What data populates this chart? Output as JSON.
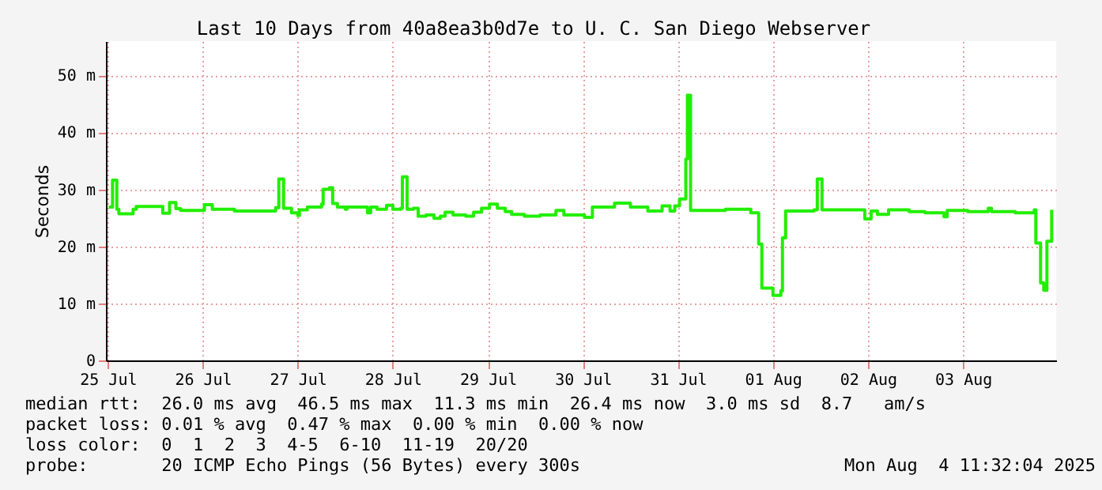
{
  "chart_data": {
    "type": "step",
    "title": "Last 10 Days from 40a8ea3b0d7e to U. C. San Diego Webserver",
    "ylabel": "Seconds",
    "xlim": [
      "2025-07-25T11:32",
      "2025-08-04T11:32"
    ],
    "xticks": [
      {
        "value": "2025-07-25T12:00",
        "label": "25 Jul"
      },
      {
        "value": "2025-07-26T12:00",
        "label": "26 Jul"
      },
      {
        "value": "2025-07-27T12:00",
        "label": "27 Jul"
      },
      {
        "value": "2025-07-28T12:00",
        "label": "28 Jul"
      },
      {
        "value": "2025-07-29T12:00",
        "label": "29 Jul"
      },
      {
        "value": "2025-07-30T12:00",
        "label": "30 Jul"
      },
      {
        "value": "2025-07-31T12:00",
        "label": "31 Jul"
      },
      {
        "value": "2025-08-01T12:00",
        "label": "01 Aug"
      },
      {
        "value": "2025-08-02T12:00",
        "label": "02 Aug"
      },
      {
        "value": "2025-08-03T12:00",
        "label": "03 Aug"
      }
    ],
    "ylim": [
      0,
      56
    ],
    "yticks": [
      0,
      {
        "value": 10,
        "label": "10 m"
      },
      {
        "value": 20,
        "label": "20 m"
      },
      {
        "value": 30,
        "label": "30 m"
      },
      {
        "value": 40,
        "label": "40 m"
      },
      {
        "value": 50,
        "label": "50 m"
      }
    ],
    "grid": true,
    "x": [
      "2025-07-25T12:15",
      "2025-07-25T13:12",
      "2025-07-25T14:17",
      "2025-07-25T14:48",
      "2025-07-25T18:24",
      "2025-07-25T19:12",
      "2025-07-26T01:12",
      "2025-07-26T01:53",
      "2025-07-26T03:36",
      "2025-07-26T05:12",
      "2025-07-26T06:24",
      "2025-07-26T12:24",
      "2025-07-26T14:24",
      "2025-07-26T20:00",
      "2025-07-27T04:00",
      "2025-07-27T06:24",
      "2025-07-27T07:12",
      "2025-07-27T08:24",
      "2025-07-27T10:24",
      "2025-07-27T12:00",
      "2025-07-27T12:24",
      "2025-07-27T14:24",
      "2025-07-27T18:00",
      "2025-07-27T18:24",
      "2025-07-27T20:00",
      "2025-07-27T20:48",
      "2025-07-27T22:00",
      "2025-07-28T00:00",
      "2025-07-28T00:24",
      "2025-07-28T05:12",
      "2025-07-28T05:36",
      "2025-07-28T06:24",
      "2025-07-28T08:00",
      "2025-07-28T10:24",
      "2025-07-28T12:00",
      "2025-07-28T14:00",
      "2025-07-28T14:24",
      "2025-07-28T15:36",
      "2025-07-28T17:12",
      "2025-07-28T18:24",
      "2025-07-28T20:24",
      "2025-07-28T22:24",
      "2025-07-29T00:00",
      "2025-07-29T01:12",
      "2025-07-29T03:12",
      "2025-07-29T06:24",
      "2025-07-29T08:24",
      "2025-07-29T10:24",
      "2025-07-29T12:24",
      "2025-07-29T14:24",
      "2025-07-29T16:24",
      "2025-07-29T18:00",
      "2025-07-29T21:12",
      "2025-07-30T01:12",
      "2025-07-30T05:12",
      "2025-07-30T07:12",
      "2025-07-30T12:24",
      "2025-07-30T14:24",
      "2025-07-30T20:00",
      "2025-07-31T00:00",
      "2025-07-31T04:24",
      "2025-07-31T08:00",
      "2025-07-31T10:00",
      "2025-07-31T11:12",
      "2025-07-31T12:24",
      "2025-07-31T14:00",
      "2025-07-31T14:24",
      "2025-07-31T15:12",
      "2025-08-01T00:00",
      "2025-08-01T06:24",
      "2025-08-01T08:24",
      "2025-08-01T09:12",
      "2025-08-01T12:00",
      "2025-08-01T14:00",
      "2025-08-01T14:24",
      "2025-08-01T15:12",
      "2025-08-01T22:24",
      "2025-08-01T23:12",
      "2025-08-02T00:24",
      "2025-08-02T09:12",
      "2025-08-02T11:12",
      "2025-08-02T12:48",
      "2025-08-02T14:24",
      "2025-08-02T17:12",
      "2025-08-02T22:24",
      "2025-08-03T02:24",
      "2025-08-03T07:12",
      "2025-08-03T08:00",
      "2025-08-03T13:12",
      "2025-08-03T18:24",
      "2025-08-03T19:12",
      "2025-08-04T01:12",
      "2025-08-04T06:00",
      "2025-08-04T06:24",
      "2025-08-04T07:36",
      "2025-08-04T08:24",
      "2025-08-04T09:12",
      "2025-08-04T10:24"
    ],
    "series": [
      {
        "color": "#22ee00",
        "values": [
          26.9,
          31.6,
          26.5,
          25.7,
          26.5,
          27.0,
          27.0,
          25.8,
          27.7,
          26.6,
          26.3,
          27.3,
          26.5,
          26.2,
          26.2,
          26.8,
          31.8,
          26.7,
          25.9,
          25.4,
          26.4,
          26.9,
          27.4,
          30.0,
          30.3,
          27.5,
          26.9,
          26.5,
          26.9,
          26.9,
          25.9,
          26.9,
          26.5,
          27.2,
          26.5,
          26.7,
          32.2,
          26.5,
          26.7,
          25.3,
          25.5,
          24.9,
          25.3,
          26.0,
          25.5,
          25.3,
          26.0,
          26.7,
          27.4,
          26.7,
          26.1,
          25.6,
          25.3,
          25.5,
          26.3,
          25.5,
          25.1,
          26.9,
          27.6,
          26.9,
          26.2,
          27.1,
          26.2,
          27.1,
          28.3,
          35.3,
          46.5,
          26.3,
          26.5,
          25.9,
          20.4,
          12.7,
          11.4,
          12.2,
          21.5,
          26.2,
          26.4,
          31.8,
          26.4,
          26.4,
          24.8,
          26.2,
          25.6,
          26.4,
          26.1,
          25.9,
          25.2,
          26.3,
          26.1,
          26.7,
          26.1,
          25.9,
          26.4,
          20.6,
          13.6,
          12.3,
          20.9,
          26.4
        ]
      }
    ],
    "annotations": [
      "median rtt:  26.0 ms avg  46.5 ms max  11.3 ms min  26.4 ms now  3.0 ms sd  8.7   am/s",
      "packet loss: 0.01 % avg  0.47 % max  0.00 % min  0.00 % now",
      "loss color:  0  1  2  3  4-5  6-10  11-19  20/20",
      "probe:       20 ICMP Echo Pings (56 Bytes) every 300s",
      "Mon Aug  4 11:32:04 2025"
    ]
  }
}
